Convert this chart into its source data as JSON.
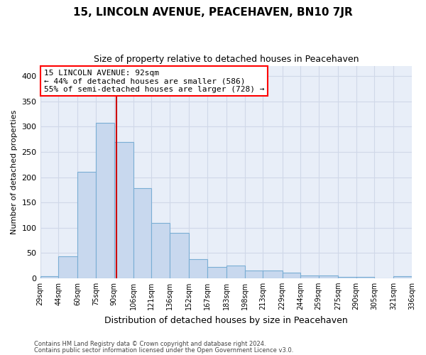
{
  "title1": "15, LINCOLN AVENUE, PEACEHAVEN, BN10 7JR",
  "title2": "Size of property relative to detached houses in Peacehaven",
  "xlabel": "Distribution of detached houses by size in Peacehaven",
  "ylabel": "Number of detached properties",
  "footnote1": "Contains HM Land Registry data © Crown copyright and database right 2024.",
  "footnote2": "Contains public sector information licensed under the Open Government Licence v3.0.",
  "annotation_line1": "15 LINCOLN AVENUE: 92sqm",
  "annotation_line2": "← 44% of detached houses are smaller (586)",
  "annotation_line3": "55% of semi-detached houses are larger (728) →",
  "bar_color": "#c8d8ee",
  "bar_edge_color": "#7aaed4",
  "grid_color": "#d0d8e8",
  "bg_color": "#e8eef8",
  "marker_color": "#cc0000",
  "marker_value": 92,
  "bin_edges": [
    29,
    44,
    60,
    75,
    90,
    106,
    121,
    136,
    152,
    167,
    183,
    198,
    213,
    229,
    244,
    259,
    275,
    290,
    305,
    321,
    336
  ],
  "bin_labels": [
    "29sqm",
    "44sqm",
    "60sqm",
    "75sqm",
    "90sqm",
    "106sqm",
    "121sqm",
    "136sqm",
    "152sqm",
    "167sqm",
    "183sqm",
    "198sqm",
    "213sqm",
    "229sqm",
    "244sqm",
    "259sqm",
    "275sqm",
    "290sqm",
    "305sqm",
    "321sqm",
    "336sqm"
  ],
  "bar_heights": [
    4,
    43,
    210,
    308,
    270,
    178,
    109,
    90,
    38,
    22,
    25,
    15,
    15,
    11,
    6,
    6,
    3,
    2,
    0,
    4
  ],
  "ylim": [
    0,
    420
  ],
  "yticks": [
    0,
    50,
    100,
    150,
    200,
    250,
    300,
    350,
    400
  ]
}
